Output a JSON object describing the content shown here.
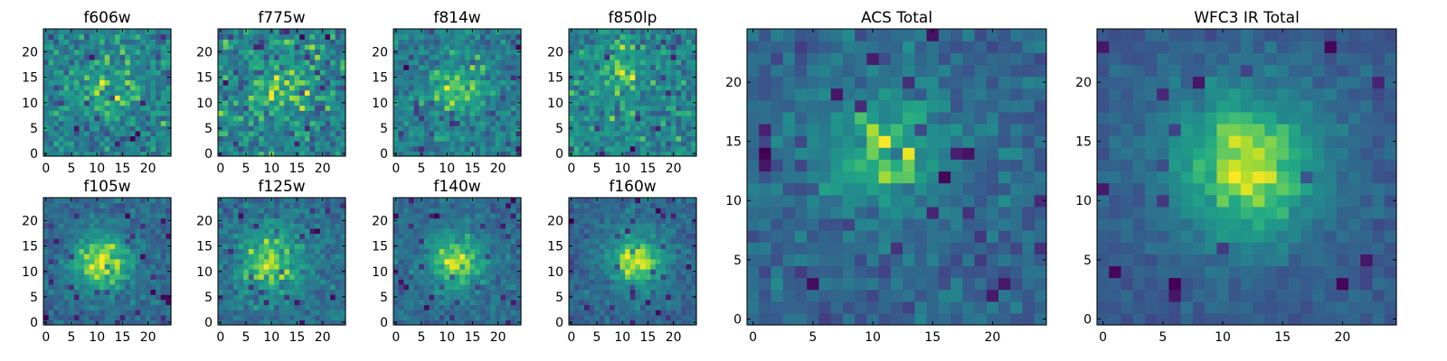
{
  "figure": {
    "colormap": "viridis",
    "grid": false,
    "background": "#ffffff"
  },
  "chart_data": [
    {
      "type": "heatmap",
      "title": "f606w",
      "xlabel": "",
      "ylabel": "",
      "xlim": [
        0,
        24
      ],
      "ylim": [
        0,
        24
      ],
      "grid_size": 25,
      "xticks": [
        0,
        5,
        10,
        15,
        20
      ],
      "yticks": [
        0,
        5,
        10,
        15,
        20
      ],
      "character": "noisy",
      "peak": [
        12,
        13
      ],
      "peak_sigma": 4,
      "signal": 0.2,
      "noise": 0.75,
      "seed": 11
    },
    {
      "type": "heatmap",
      "title": "f775w",
      "xlabel": "",
      "ylabel": "",
      "xlim": [
        0,
        24
      ],
      "ylim": [
        0,
        24
      ],
      "grid_size": 25,
      "xticks": [
        0,
        5,
        10,
        15,
        20
      ],
      "yticks": [
        0,
        5,
        10,
        15,
        20
      ],
      "character": "noisy",
      "peak": [
        12,
        13
      ],
      "peak_sigma": 4,
      "signal": 0.25,
      "noise": 0.75,
      "seed": 23
    },
    {
      "type": "heatmap",
      "title": "f814w",
      "xlabel": "",
      "ylabel": "",
      "xlim": [
        0,
        24
      ],
      "ylim": [
        0,
        24
      ],
      "grid_size": 25,
      "xticks": [
        0,
        5,
        10,
        15,
        20
      ],
      "yticks": [
        0,
        5,
        10,
        15,
        20
      ],
      "character": "noisy",
      "peak": [
        12,
        13
      ],
      "peak_sigma": 4,
      "signal": 0.3,
      "noise": 0.7,
      "seed": 37
    },
    {
      "type": "heatmap",
      "title": "f850lp",
      "xlabel": "",
      "ylabel": "",
      "xlim": [
        0,
        24
      ],
      "ylim": [
        0,
        24
      ],
      "grid_size": 25,
      "xticks": [
        0,
        5,
        10,
        15,
        20
      ],
      "yticks": [
        0,
        5,
        10,
        15,
        20
      ],
      "character": "noisy",
      "peak": [
        10,
        16
      ],
      "peak_sigma": 3,
      "signal": 0.3,
      "noise": 0.8,
      "seed": 41
    },
    {
      "type": "heatmap",
      "title": "f105w",
      "xlabel": "",
      "ylabel": "",
      "xlim": [
        0,
        24
      ],
      "ylim": [
        0,
        24
      ],
      "grid_size": 25,
      "xticks": [
        0,
        5,
        10,
        15,
        20
      ],
      "yticks": [
        0,
        5,
        10,
        15,
        20
      ],
      "character": "source",
      "peak": [
        11,
        12
      ],
      "peak_sigma": 4,
      "signal": 0.55,
      "noise": 0.45,
      "seed": 53
    },
    {
      "type": "heatmap",
      "title": "f125w",
      "xlabel": "",
      "ylabel": "",
      "xlim": [
        0,
        24
      ],
      "ylim": [
        0,
        24
      ],
      "grid_size": 25,
      "xticks": [
        0,
        5,
        10,
        15,
        20
      ],
      "yticks": [
        0,
        5,
        10,
        15,
        20
      ],
      "character": "source",
      "peak": [
        10,
        12
      ],
      "peak_sigma": 5,
      "signal": 0.45,
      "noise": 0.55,
      "seed": 67
    },
    {
      "type": "heatmap",
      "title": "f140w",
      "xlabel": "",
      "ylabel": "",
      "xlim": [
        0,
        24
      ],
      "ylim": [
        0,
        24
      ],
      "grid_size": 25,
      "xticks": [
        0,
        5,
        10,
        15,
        20
      ],
      "yticks": [
        0,
        5,
        10,
        15,
        20
      ],
      "character": "source",
      "peak": [
        12,
        12
      ],
      "peak_sigma": 4,
      "signal": 0.55,
      "noise": 0.45,
      "seed": 71
    },
    {
      "type": "heatmap",
      "title": "f160w",
      "xlabel": "",
      "ylabel": "",
      "xlim": [
        0,
        24
      ],
      "ylim": [
        0,
        24
      ],
      "grid_size": 25,
      "xticks": [
        0,
        5,
        10,
        15,
        20
      ],
      "yticks": [
        0,
        5,
        10,
        15,
        20
      ],
      "character": "source",
      "peak": [
        13,
        12
      ],
      "peak_sigma": 4,
      "signal": 0.55,
      "noise": 0.45,
      "seed": 83
    },
    {
      "type": "heatmap",
      "title": "ACS Total",
      "xlabel": "",
      "ylabel": "",
      "xlim": [
        0,
        24
      ],
      "ylim": [
        0,
        24
      ],
      "grid_size": 25,
      "xticks": [
        0,
        5,
        10,
        15,
        20
      ],
      "yticks": [
        0,
        5,
        10,
        15,
        20
      ],
      "character": "source",
      "peak": [
        11,
        14
      ],
      "peak_sigma": 3.5,
      "signal": 0.5,
      "noise": 0.55,
      "seed": 97
    },
    {
      "type": "heatmap",
      "title": "WFC3 IR Total",
      "xlabel": "",
      "ylabel": "",
      "xlim": [
        0,
        24
      ],
      "ylim": [
        0,
        24
      ],
      "grid_size": 25,
      "xticks": [
        0,
        5,
        10,
        15,
        20
      ],
      "yticks": [
        0,
        5,
        10,
        15,
        20
      ],
      "character": "source",
      "peak": [
        12,
        13
      ],
      "peak_sigma": 4.5,
      "signal": 0.7,
      "noise": 0.35,
      "seed": 101
    }
  ]
}
